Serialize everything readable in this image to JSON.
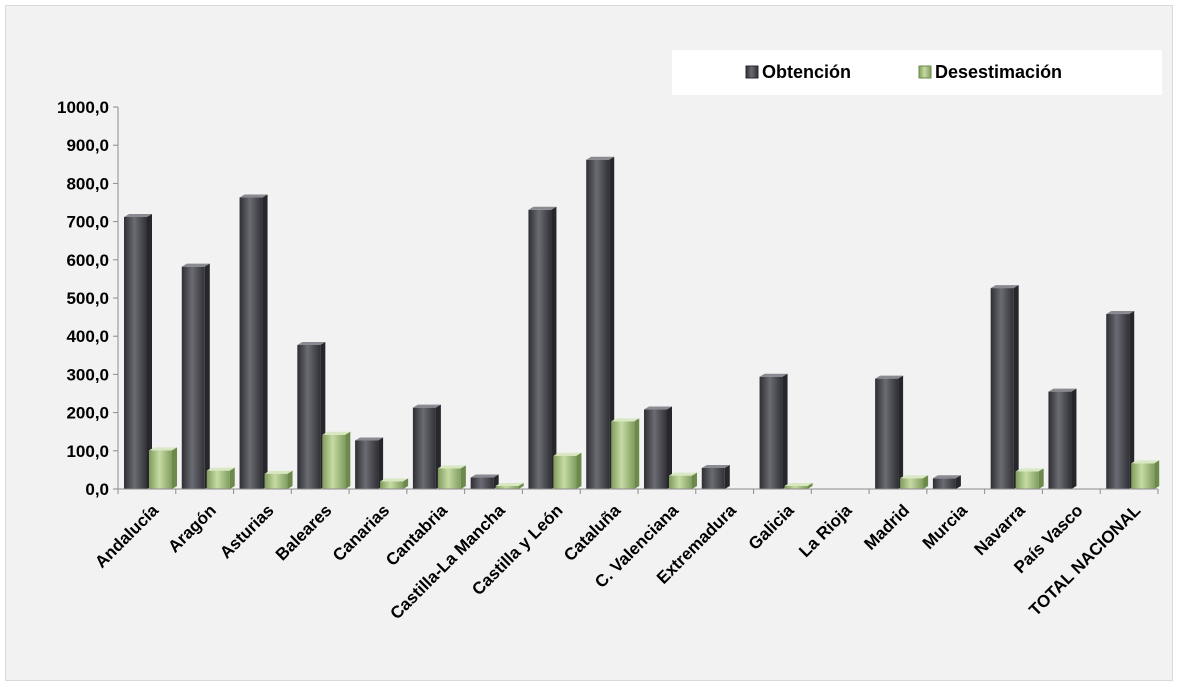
{
  "chart_data": {
    "type": "bar",
    "title": "",
    "xlabel": "",
    "ylabel": "",
    "ylim": [
      0,
      1000
    ],
    "y_ticks": [
      "0,0",
      "100,0",
      "200,0",
      "300,0",
      "400,0",
      "500,0",
      "600,0",
      "700,0",
      "800,0",
      "900,0",
      "1000,0"
    ],
    "y_tick_values": [
      0,
      100,
      200,
      300,
      400,
      500,
      600,
      700,
      800,
      900,
      1000
    ],
    "grid": false,
    "legend_position": "top-right",
    "categories": [
      "Andalucía",
      "Aragón",
      "Asturias",
      "Baleares",
      "Canarias",
      "Cantabria",
      "Castilla-La Mancha",
      "Castilla y León",
      "Cataluña",
      "C. Valenciana",
      "Extremadura",
      "Galicia",
      "La Rioja",
      "Madrid",
      "Murcia",
      "Navarra",
      "País Vasco",
      "TOTAL NACIONAL"
    ],
    "series": [
      {
        "name": "Obtención",
        "color": "#4a4a52",
        "values": [
          712,
          582,
          763,
          377,
          127,
          213,
          30,
          731,
          862,
          208,
          55,
          294,
          0,
          289,
          28,
          526,
          255,
          458
        ]
      },
      {
        "name": "Desestimación",
        "color": "#9cb77a",
        "values": [
          101,
          48,
          40,
          142,
          20,
          54,
          8,
          87,
          177,
          35,
          0,
          8,
          0,
          28,
          0,
          46,
          0,
          67
        ]
      }
    ]
  }
}
